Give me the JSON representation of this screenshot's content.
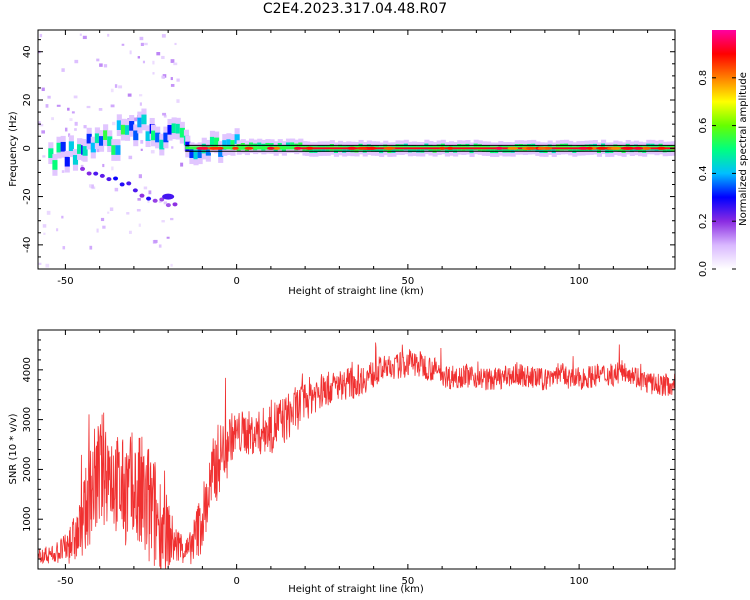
{
  "figure": {
    "title": "C2E4.2023.317.04.48.R07"
  },
  "chart_data": [
    {
      "type": "heatmap",
      "xlabel": "Height of straight line (km)",
      "ylabel": "Frequency (Hz)",
      "xlim": [
        -58,
        128
      ],
      "ylim": [
        -50,
        49
      ],
      "xticks": [
        -50,
        0,
        50,
        100
      ],
      "xtick_labels": [
        "-50",
        "0",
        "50",
        "100"
      ],
      "yticks": [
        -40,
        -20,
        0,
        20,
        40
      ],
      "ytick_labels": [
        "-40",
        "-20",
        "0",
        "20",
        "40"
      ],
      "zlim": [
        0,
        1
      ],
      "colorbar": {
        "label": "Normalized spectral amplitude",
        "ticks": [
          0.0,
          0.2,
          0.4,
          0.6,
          0.8
        ],
        "tick_labels": [
          "0.0",
          "0.2",
          "0.4",
          "0.6",
          "0.8"
        ],
        "colormap": [
          "#ffffff",
          "#d9b8ff",
          "#8a2be2",
          "#0000ff",
          "#00bfff",
          "#00ff80",
          "#66ff00",
          "#ffff00",
          "#ff8000",
          "#ff0000",
          "#ff00a0"
        ]
      },
      "ridge": {
        "description": "Dominant spectral ridge near 0 Hz across all heights",
        "segments": [
          {
            "x_start": -55,
            "x_end": -45,
            "freq_hz": -3,
            "amplitude": 0.55
          },
          {
            "x_start": -45,
            "x_end": -35,
            "freq_hz": 2,
            "amplitude": 0.5
          },
          {
            "x_start": -35,
            "x_end": -25,
            "freq_hz": 8,
            "amplitude": 0.45
          },
          {
            "x_start": -25,
            "x_end": -15,
            "freq_hz": 5,
            "amplitude": 0.5
          },
          {
            "x_start": -15,
            "x_end": 0,
            "freq_hz": 1,
            "amplitude": 0.6
          },
          {
            "x_start": 0,
            "x_end": 20,
            "freq_hz": 0.5,
            "amplitude": 0.8
          },
          {
            "x_start": 20,
            "x_end": 128,
            "freq_hz": 0,
            "amplitude": 0.95
          }
        ],
        "diagonal_branch": {
          "x_start": -45,
          "x_end": -18,
          "freq_start": -8,
          "freq_end": -24
        }
      }
    },
    {
      "type": "line",
      "xlabel": "Height of straight line (km)",
      "ylabel": "SNR (10 * v/v)",
      "xlim": [
        -58,
        128
      ],
      "ylim": [
        0,
        4800
      ],
      "xticks": [
        -50,
        0,
        50,
        100
      ],
      "xtick_labels": [
        "-50",
        "0",
        "50",
        "100"
      ],
      "yticks": [
        1000,
        2000,
        3000,
        4000
      ],
      "ytick_labels": [
        "1000",
        "2000",
        "3000",
        "4000"
      ],
      "color": "#f03030",
      "series": [
        {
          "name": "SNR",
          "x": [
            -58,
            -54,
            -50,
            -46,
            -42,
            -38,
            -34,
            -30,
            -26,
            -22,
            -18,
            -14,
            -10,
            -6,
            -2,
            2,
            6,
            10,
            14,
            18,
            22,
            26,
            30,
            34,
            38,
            42,
            46,
            50,
            54,
            58,
            62,
            66,
            70,
            74,
            78,
            82,
            86,
            90,
            94,
            98,
            102,
            106,
            110,
            114,
            118,
            122,
            126
          ],
          "y": [
            250,
            300,
            400,
            700,
            1700,
            2100,
            1600,
            1500,
            1250,
            900,
            500,
            350,
            1000,
            2100,
            2650,
            2750,
            2700,
            2850,
            3000,
            3250,
            3500,
            3600,
            3700,
            3750,
            3850,
            4000,
            4050,
            4150,
            4100,
            4000,
            3850,
            3900,
            3850,
            3800,
            3850,
            3900,
            3850,
            3800,
            3950,
            3800,
            3850,
            3900,
            3900,
            4000,
            3800,
            3700,
            3700
          ],
          "spread": [
            150,
            200,
            300,
            600,
            1100,
            1200,
            1000,
            1300,
            1400,
            1000,
            400,
            300,
            700,
            800,
            500,
            450,
            450,
            550,
            500,
            450,
            400,
            350,
            300,
            350,
            300,
            280,
            250,
            300,
            280,
            250,
            250,
            250,
            230,
            230,
            230,
            230,
            230,
            230,
            230,
            230,
            230,
            230,
            230,
            230,
            230,
            230,
            230
          ]
        }
      ]
    }
  ]
}
